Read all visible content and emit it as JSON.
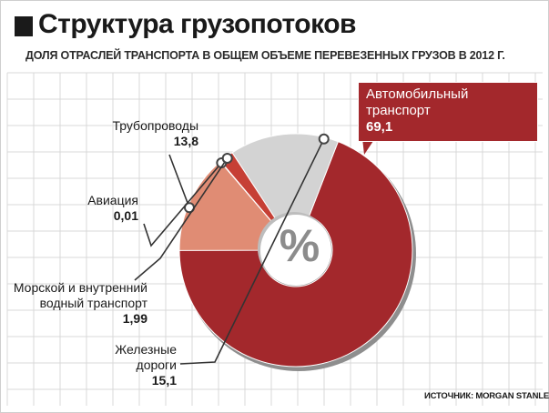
{
  "header": {
    "title": "Структура грузопотоков",
    "subtitle": "ДОЛЯ ОТРАСЛЕЙ ТРАНСПОРТА В ОБЩЕМ ОБЪЕМЕ ПЕРЕВЕЗЕННЫХ ГРУЗОВ В 2012 Г."
  },
  "center_symbol": "%",
  "source": "ИСТОЧНИК: MORGAN STANLEY",
  "chart_data": {
    "type": "pie",
    "title": "Структура грузопотоков",
    "subtitle": "ДОЛЯ ОТРАСЛЕЙ ТРАНСПОРТА В ОБЩЕМ ОБЪЕМЕ ПЕРЕВЕЗЕННЫХ ГРУЗОВ В 2012 Г.",
    "unit": "%",
    "donut": true,
    "slices": [
      {
        "label": "Автомобильный транспорт",
        "label_line1": "Автомобильный",
        "label_line2": "транспорт",
        "value": 69.1,
        "value_text": "69,1",
        "color": "#a3282c"
      },
      {
        "label": "Железные дороги",
        "label_line1": "Железные",
        "label_line2": "дороги",
        "value": 15.1,
        "value_text": "15,1",
        "color": "#d3d3d3"
      },
      {
        "label": "Морской и внутренний водный транспорт",
        "label_line1": "Морской и внутренний",
        "label_line2": "водный транспорт",
        "value": 1.99,
        "value_text": "1,99",
        "color": "#c63f35"
      },
      {
        "label": "Авиация",
        "label_line1": "Авиация",
        "value": 0.01,
        "value_text": "0,01",
        "color": "#c63f35"
      },
      {
        "label": "Трубопроводы",
        "label_line1": "Трубопроводы",
        "value": 13.8,
        "value_text": "13,8",
        "color": "#e08c74"
      }
    ],
    "start_angle_deg": 180,
    "direction": "counterclockwise",
    "grid": true
  }
}
